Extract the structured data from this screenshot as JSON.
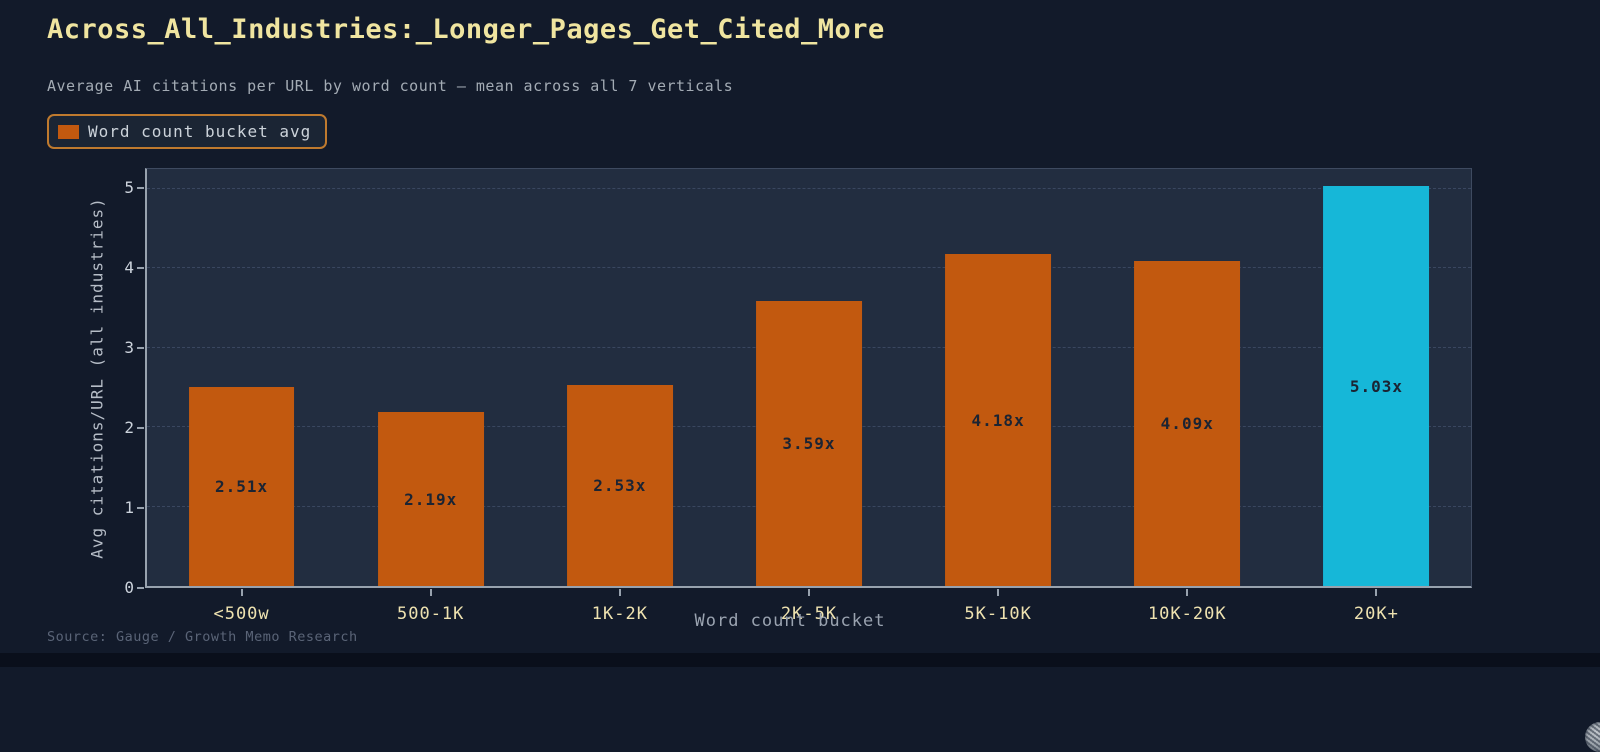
{
  "header": {
    "title": "Across_All_Industries:_Longer_Pages_Get_Cited_More",
    "subtitle": "Average AI citations per URL by word count — mean across all 7 verticals"
  },
  "legend": {
    "label": "Word count bucket avg",
    "swatch_color": "#c2590f"
  },
  "chart_data": {
    "type": "bar",
    "categories": [
      "<500w",
      "500-1K",
      "1K-2K",
      "2K-5K",
      "5K-10K",
      "10K-20K",
      "20K+"
    ],
    "values": [
      2.51,
      2.19,
      2.53,
      3.59,
      4.18,
      4.09,
      5.03
    ],
    "bar_labels": [
      "2.51x",
      "2.19x",
      "2.53x",
      "3.59x",
      "4.18x",
      "4.09x",
      "5.03x"
    ],
    "title": "Across_All_Industries:_Longer_Pages_Get_Cited_More",
    "xlabel": "Word count bucket",
    "ylabel": "Avg citations/URL (all industries)",
    "ylim": [
      0,
      5.25
    ],
    "yticks": [
      0,
      1,
      2,
      3,
      4,
      5
    ],
    "grid": "horizontal-dashed",
    "legend_position": "top-left",
    "bar_color": "#c2590f",
    "highlight_index": 6,
    "highlight_color": "#16b7d8",
    "value_label_color": "#1b2433"
  },
  "footer": {
    "source": "Source: Gauge / Growth Memo Research"
  },
  "colors": {
    "background": "#121a2a",
    "plot_background": "#222d40",
    "title": "#f0e5a0",
    "subtitle": "#a3abb4",
    "x_tick": "#eee2b0",
    "y_tick": "#ccd3dc",
    "gridline": "#3a4760",
    "axis_spine": "#98a2ae",
    "legend_border": "#bf7a2e",
    "source": "#5a6477"
  }
}
